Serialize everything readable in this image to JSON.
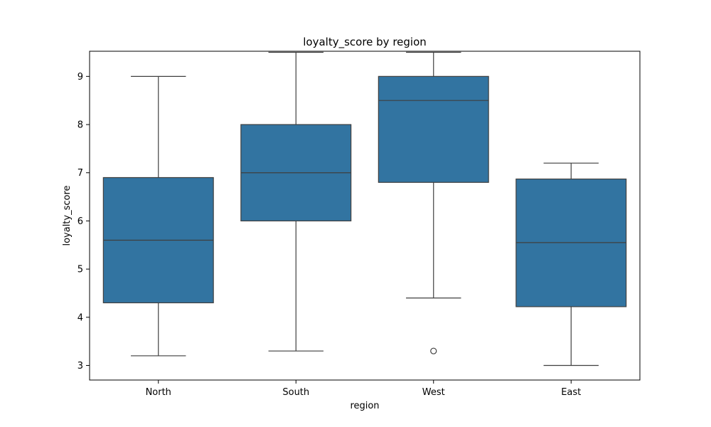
{
  "chart_data": {
    "type": "box",
    "title": "loyalty_score by region",
    "xlabel": "region",
    "ylabel": "loyalty_score",
    "categories": [
      "North",
      "South",
      "West",
      "East"
    ],
    "boxes": [
      {
        "category": "North",
        "whisker_low": 3.2,
        "q1": 4.3,
        "median": 5.6,
        "q3": 6.9,
        "whisker_high": 9.0,
        "outliers": []
      },
      {
        "category": "South",
        "whisker_low": 3.3,
        "q1": 6.0,
        "median": 7.0,
        "q3": 8.0,
        "whisker_high": 9.5,
        "outliers": []
      },
      {
        "category": "West",
        "whisker_low": 4.4,
        "q1": 6.8,
        "median": 8.5,
        "q3": 9.0,
        "whisker_high": 9.5,
        "outliers": [
          3.3
        ]
      },
      {
        "category": "East",
        "whisker_low": 3.0,
        "q1": 4.22,
        "median": 5.55,
        "q3": 6.87,
        "whisker_high": 7.2,
        "outliers": []
      }
    ],
    "yticks": [
      3,
      4,
      5,
      6,
      7,
      8,
      9
    ],
    "ylim": [
      2.7,
      9.8
    ],
    "grid": false,
    "box_color": "#3274a1",
    "line_color": "#3f3f3f"
  }
}
